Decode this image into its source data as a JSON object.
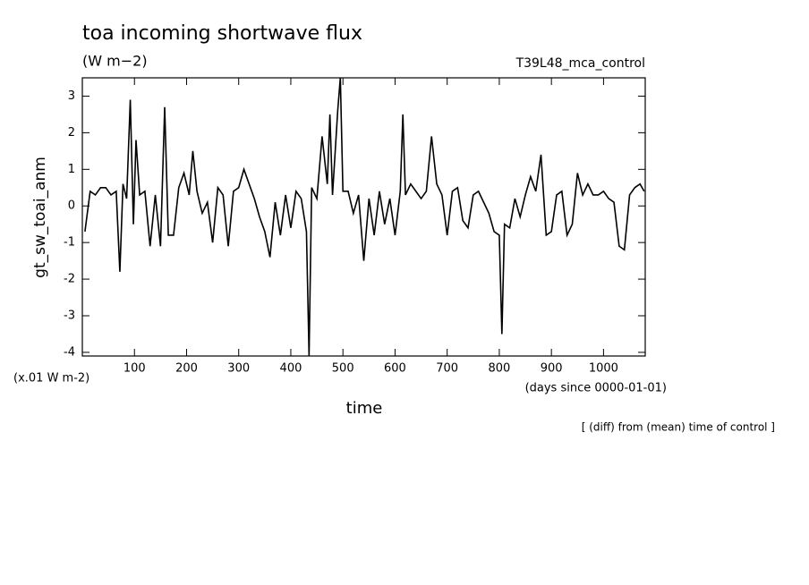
{
  "chart_data": {
    "type": "line",
    "title": "toa incoming shortwave flux",
    "subtitle": "(W m−2)",
    "experiment": "T39L48_mca_control",
    "y_label": "gt_sw_toai_anm",
    "y_unit": "(x.01 W m-2)",
    "x_label": "time",
    "x_unit": "(days since 0000-01-01)",
    "note": "[ (diff) from (mean) time of control ]",
    "x": [
      5,
      15,
      25,
      35,
      45,
      55,
      65,
      72,
      78,
      85,
      92,
      98,
      103,
      110,
      120,
      130,
      140,
      150,
      158,
      165,
      175,
      185,
      195,
      205,
      212,
      220,
      230,
      240,
      250,
      260,
      270,
      280,
      290,
      300,
      310,
      320,
      330,
      340,
      350,
      360,
      370,
      380,
      390,
      400,
      410,
      420,
      430,
      435,
      440,
      450,
      460,
      470,
      475,
      480,
      490,
      495,
      500,
      510,
      520,
      530,
      540,
      550,
      560,
      570,
      580,
      590,
      600,
      610,
      615,
      620,
      630,
      640,
      650,
      660,
      670,
      680,
      690,
      700,
      710,
      720,
      730,
      740,
      750,
      760,
      770,
      780,
      790,
      800,
      805,
      810,
      820,
      830,
      840,
      850,
      860,
      870,
      880,
      890,
      900,
      910,
      920,
      930,
      940,
      950,
      960,
      970,
      980,
      990,
      1000,
      1010,
      1020,
      1030,
      1040,
      1050,
      1060,
      1070,
      1078
    ],
    "series": [
      {
        "color": "#000000",
        "values": [
          -0.7,
          0.4,
          0.3,
          0.5,
          0.5,
          0.3,
          0.4,
          -1.8,
          0.6,
          0.2,
          2.9,
          -0.5,
          1.8,
          0.3,
          0.4,
          -1.1,
          0.3,
          -1.1,
          2.7,
          -0.8,
          -0.8,
          0.5,
          0.9,
          0.3,
          1.5,
          0.4,
          -0.2,
          0.1,
          -1.0,
          0.5,
          0.3,
          -1.1,
          0.4,
          0.5,
          1.0,
          0.6,
          0.2,
          -0.3,
          -0.7,
          -1.4,
          0.1,
          -0.8,
          0.3,
          -0.6,
          0.4,
          0.2,
          -0.7,
          -4.1,
          0.5,
          0.2,
          1.9,
          0.6,
          2.5,
          0.3,
          2.6,
          3.5,
          0.4,
          0.4,
          -0.2,
          0.3,
          -1.5,
          0.2,
          -0.8,
          0.4,
          -0.5,
          0.2,
          -0.8,
          0.4,
          2.5,
          0.3,
          0.6,
          0.4,
          0.2,
          0.4,
          1.9,
          0.6,
          0.3,
          -0.8,
          0.4,
          0.5,
          -0.4,
          -0.6,
          0.3,
          0.4,
          0.1,
          -0.2,
          -0.7,
          -0.8,
          -3.5,
          -0.5,
          -0.6,
          0.2,
          -0.3,
          0.3,
          0.8,
          0.4,
          1.4,
          -0.8,
          -0.7,
          0.3,
          0.4,
          -0.8,
          -0.5,
          0.9,
          0.3,
          0.6,
          0.3,
          0.3,
          0.4,
          0.2,
          0.1,
          -1.1,
          -1.2,
          0.3,
          0.5,
          0.6,
          0.4
        ]
      }
    ],
    "xlim": [
      0,
      1080
    ],
    "xticks": [
      100,
      200,
      300,
      400,
      500,
      600,
      700,
      800,
      900,
      1000
    ],
    "ylim": [
      -4.1,
      3.5
    ],
    "yticks": [
      -4,
      -3,
      -2,
      -1,
      0,
      1,
      2,
      3
    ]
  }
}
